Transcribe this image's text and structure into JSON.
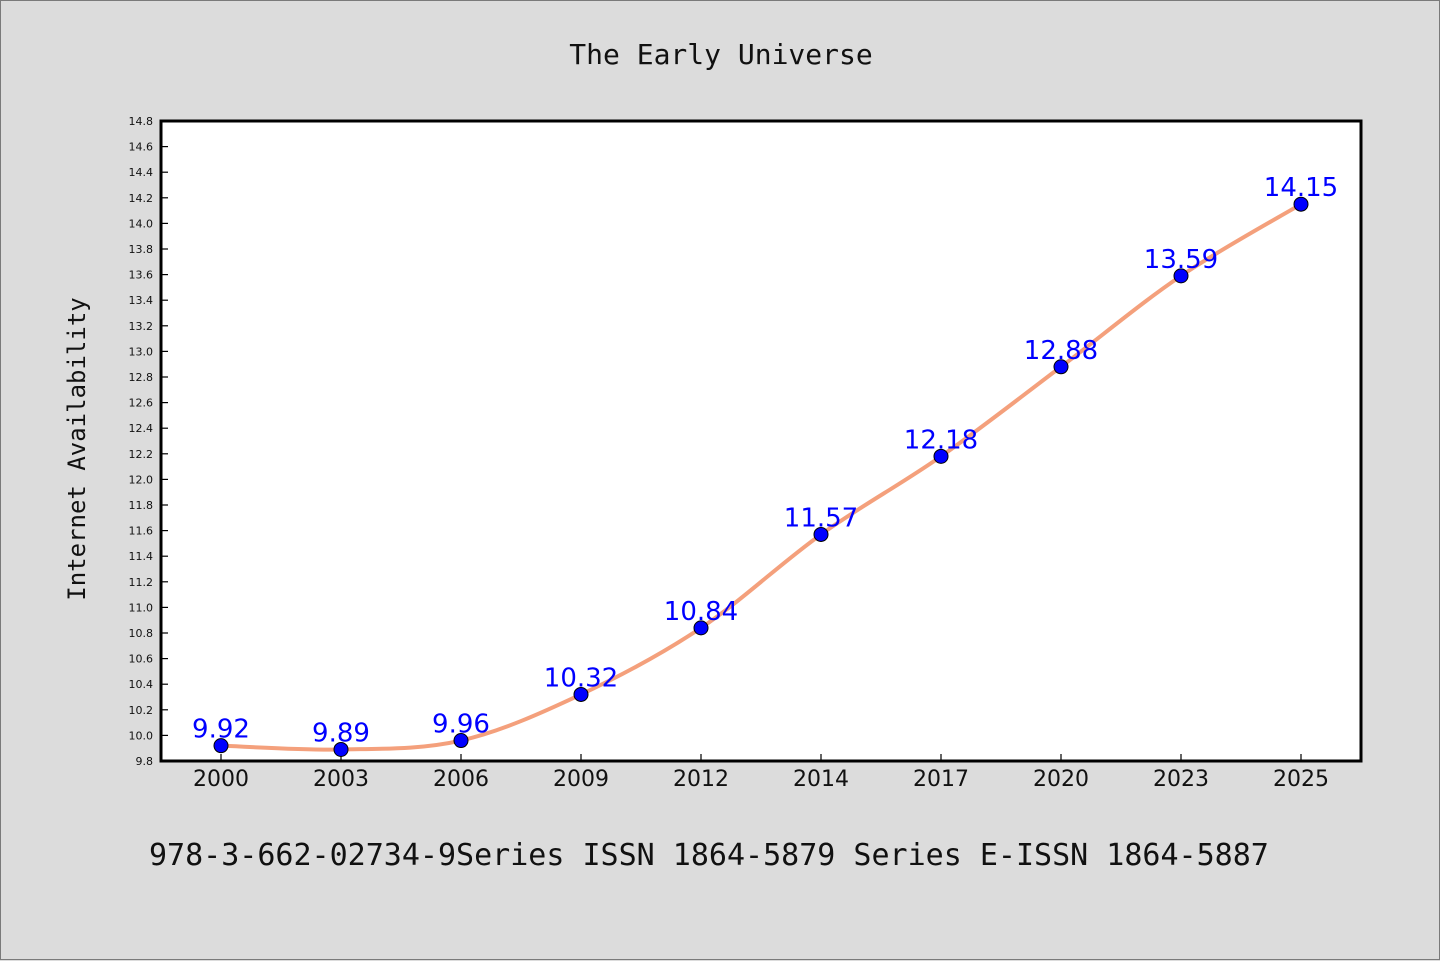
{
  "page": {
    "footer": "978-3-662-02734-9Series ISSN 1864-5879 Series E-ISSN 1864-5887"
  },
  "chart_data": {
    "type": "line",
    "title": "The Early Universe",
    "xlabel": "",
    "ylabel": "Internet Availability",
    "categories": [
      "2000",
      "2003",
      "2006",
      "2009",
      "2012",
      "2014",
      "2017",
      "2020",
      "2023",
      "2025"
    ],
    "series": [
      {
        "values": [
          9.92,
          9.89,
          9.96,
          10.32,
          10.84,
          11.57,
          12.18,
          12.88,
          13.59,
          14.15
        ],
        "line_color": "#f4a07c",
        "marker_color": "#0000ff",
        "label_color": "#0000ff"
      }
    ],
    "ylim": [
      9.8,
      14.8
    ],
    "yticks": [
      "9.8",
      "10.0",
      "10.2",
      "10.4",
      "10.6",
      "10.8",
      "11.0",
      "11.2",
      "11.4",
      "11.6",
      "11.8",
      "12.0",
      "12.2",
      "12.4",
      "12.6",
      "12.8",
      "13.0",
      "13.2",
      "13.4",
      "13.6",
      "13.8",
      "14.0",
      "14.2",
      "14.4",
      "14.6",
      "14.8"
    ],
    "data_labels": [
      "9.92",
      "9.89",
      "9.96",
      "10.32",
      "10.84",
      "11.57",
      "12.18",
      "12.88",
      "13.59",
      "14.15"
    ],
    "grid": false,
    "legend": "none"
  }
}
